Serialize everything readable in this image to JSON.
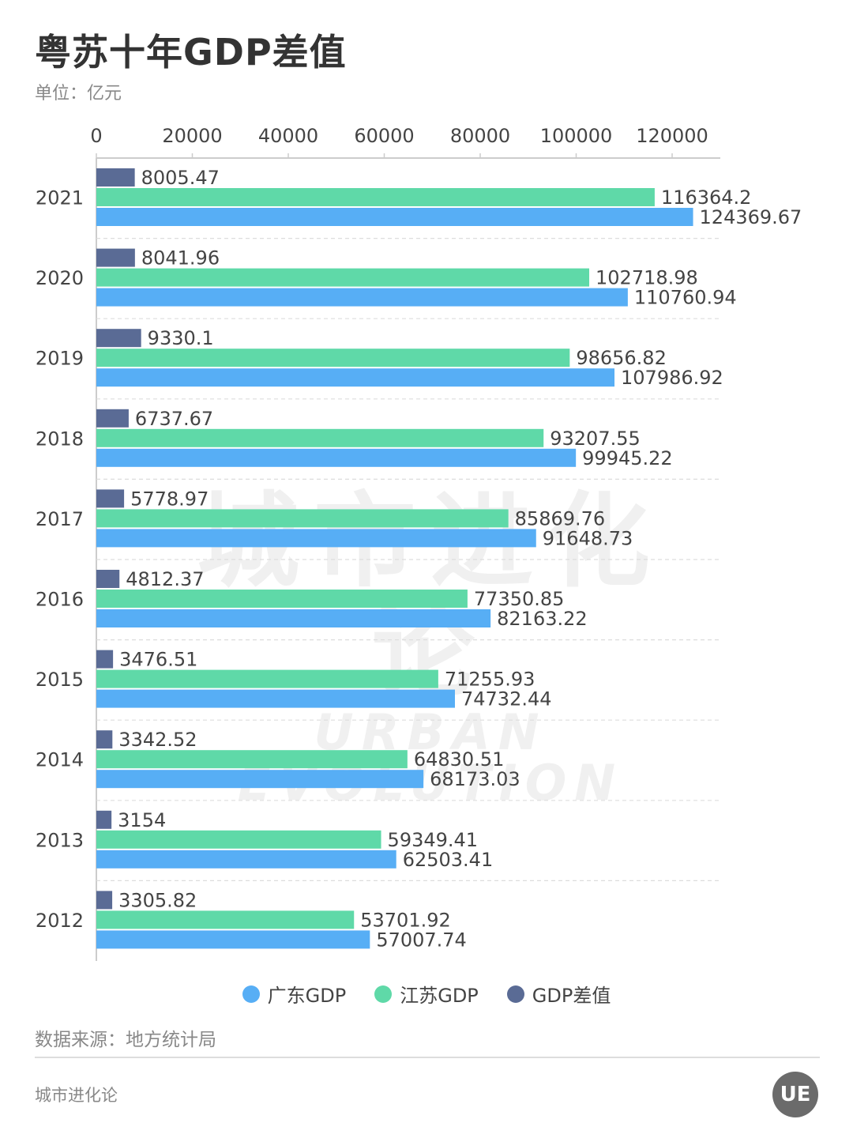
{
  "header": {
    "title": "粤苏十年GDP差值",
    "unit": "单位：亿元"
  },
  "watermark": {
    "cn": "城市进化论",
    "en": "URBAN EVOLUTION"
  },
  "legend": {
    "items": [
      {
        "label": "广东GDP",
        "color": "#57aef5"
      },
      {
        "label": "江苏GDP",
        "color": "#5fd9a8"
      },
      {
        "label": "GDP差值",
        "color": "#5a6b95"
      }
    ]
  },
  "footer": {
    "source": "数据来源：地方统计局",
    "brand": "城市进化论",
    "logo_text": "UE"
  },
  "chart_data": {
    "type": "bar",
    "orientation": "horizontal",
    "title": "粤苏十年GDP差值",
    "xlabel": "单位：亿元",
    "ylabel": "",
    "xlim": [
      0,
      130000
    ],
    "x_ticks": [
      0,
      20000,
      40000,
      60000,
      80000,
      100000,
      120000
    ],
    "axis_position": "top",
    "categories": [
      "2021",
      "2020",
      "2019",
      "2018",
      "2017",
      "2016",
      "2015",
      "2014",
      "2013",
      "2012"
    ],
    "series": [
      {
        "name": "GDP差值",
        "color": "#5a6b95",
        "values": [
          8005.47,
          8041.96,
          9330.1,
          6737.67,
          5778.97,
          4812.37,
          3476.51,
          3342.52,
          3154,
          3305.82
        ],
        "labels": [
          "8005.47",
          "8041.96",
          "9330.1",
          "6737.67",
          "5778.97",
          "4812.37",
          "3476.51",
          "3342.52",
          "3154",
          "3305.82"
        ]
      },
      {
        "name": "江苏GDP",
        "color": "#5fd9a8",
        "values": [
          116364.2,
          102718.98,
          98656.82,
          93207.55,
          85869.76,
          77350.85,
          71255.93,
          64830.51,
          59349.41,
          53701.92
        ],
        "labels": [
          "116364.2",
          "102718.98",
          "98656.82",
          "93207.55",
          "85869.76",
          "77350.85",
          "71255.93",
          "64830.51",
          "59349.41",
          "53701.92"
        ]
      },
      {
        "name": "广东GDP",
        "color": "#57aef5",
        "values": [
          124369.67,
          110760.94,
          107986.92,
          99945.22,
          91648.73,
          82163.22,
          74732.44,
          68173.03,
          62503.41,
          57007.74
        ],
        "labels": [
          "124369.67",
          "110760.94",
          "107986.92",
          "99945.22",
          "91648.73",
          "82163.22",
          "74732.44",
          "68173.03",
          "62503.41",
          "57007.74"
        ]
      }
    ],
    "legend_position": "bottom",
    "grid": "horizontal-dashed"
  }
}
